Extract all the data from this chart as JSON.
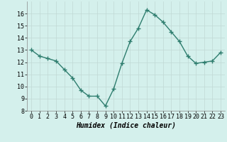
{
  "x": [
    0,
    1,
    2,
    3,
    4,
    5,
    6,
    7,
    8,
    9,
    10,
    11,
    12,
    13,
    14,
    15,
    16,
    17,
    18,
    19,
    20,
    21,
    22,
    23
  ],
  "y": [
    13.0,
    12.5,
    12.3,
    12.1,
    11.4,
    10.7,
    9.7,
    9.2,
    9.2,
    8.4,
    9.8,
    11.9,
    13.7,
    14.8,
    16.3,
    15.9,
    15.3,
    14.5,
    13.7,
    12.5,
    11.9,
    12.0,
    12.1,
    12.8
  ],
  "line_color": "#2e7d6e",
  "marker": "+",
  "marker_size": 4,
  "bg_color": "#d4f0ec",
  "grid_major_color": "#c0d8d4",
  "grid_minor_color": "#dceeed",
  "xlabel": "Humidex (Indice chaleur)",
  "xlim": [
    -0.5,
    23.5
  ],
  "ylim": [
    8,
    17
  ],
  "yticks": [
    8,
    9,
    10,
    11,
    12,
    13,
    14,
    15,
    16
  ],
  "xtick_labels": [
    "0",
    "1",
    "2",
    "3",
    "4",
    "5",
    "6",
    "7",
    "8",
    "9",
    "10",
    "11",
    "12",
    "13",
    "14",
    "15",
    "16",
    "17",
    "18",
    "19",
    "20",
    "21",
    "22",
    "23"
  ],
  "xlabel_fontsize": 7,
  "tick_fontsize": 6,
  "line_width": 1.0,
  "marker_color": "#2e7d6e"
}
